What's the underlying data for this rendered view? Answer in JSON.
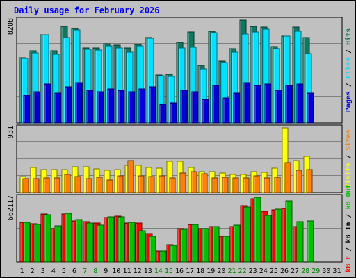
{
  "chart_data": {
    "type": "bar",
    "title": "Daily usage for February 2026",
    "categories": [
      "1",
      "2",
      "3",
      "4",
      "5",
      "6",
      "7",
      "8",
      "9",
      "10",
      "11",
      "12",
      "13",
      "14",
      "15",
      "16",
      "17",
      "18",
      "19",
      "20",
      "21",
      "22",
      "23",
      "24",
      "25",
      "26",
      "27",
      "28",
      "29",
      "30",
      "31"
    ],
    "weekend_days": [
      "7",
      "8",
      "14",
      "15",
      "21",
      "22",
      "28",
      "29"
    ],
    "panels": [
      {
        "max_label": "8208",
        "ylim": [
          0,
          8208
        ],
        "legend": [
          "Pages",
          "Files",
          "Hits"
        ],
        "series": [
          {
            "name": "Hits",
            "color": "#107860",
            "values": [
              5209,
              5759,
              7067,
              5780,
              7688,
              7539,
              5963,
              5964,
              6343,
              6196,
              6005,
              6250,
              6818,
              3838,
              3894,
              6437,
              7289,
              4577,
              7339,
              4946,
              5923,
              8208,
              7688,
              7637,
              6103,
              6917,
              7643,
              6840,
              0,
              0,
              0
            ]
          },
          {
            "name": "Files",
            "color": "#00e0ff",
            "values": [
              5140,
              5600,
              7020,
              5501,
              6809,
              7409,
              5899,
              5817,
              6181,
              5967,
              5667,
              6136,
              6740,
              3768,
              3733,
              5964,
              6022,
              4300,
              7220,
              4802,
              5679,
              7124,
              7280,
              7484,
              5931,
              6905,
              7344,
              5526,
              0,
              0,
              0
            ]
          },
          {
            "name": "Pages",
            "color": "#0000d8",
            "values": [
              2200,
              2500,
              3100,
              2400,
              2900,
              3200,
              2600,
              2500,
              2700,
              2600,
              2500,
              2700,
              2900,
              1500,
              1600,
              2600,
              2500,
              1900,
              3000,
              2000,
              2400,
              3200,
              3000,
              3100,
              2600,
              3000,
              3100,
              2400,
              0,
              0,
              0
            ]
          }
        ]
      },
      {
        "max_label": "931",
        "ylim": [
          0,
          931
        ],
        "legend": [
          "Visits",
          "Sites"
        ],
        "series": [
          {
            "name": "Visits",
            "color": "#ffff00",
            "values": [
              231,
              363,
              333,
              329,
              331,
              370,
              371,
              339,
              322,
              333,
              394,
              391,
              356,
              349,
              448,
              448,
              356,
              302,
              299,
              282,
              261,
              256,
              305,
              294,
              348,
              931,
              458,
              518,
              0,
              0,
              0
            ]
          },
          {
            "name": "Sites",
            "color": "#ff8000",
            "values": [
              205,
              201,
              207,
              211,
              259,
              233,
              201,
              219,
              182,
              236,
              458,
              240,
              231,
              241,
              213,
              281,
              301,
              273,
              215,
              222,
              207,
              208,
              238,
              213,
              218,
              426,
              318,
              331,
              0,
              0,
              0
            ]
          }
        ]
      },
      {
        "max_label": "662117",
        "ylim": [
          0,
          662117
        ],
        "legend": [
          "kB F",
          "kB In",
          "kB Out"
        ],
        "series": [
          {
            "name": "kB F",
            "color": "#ff0000",
            "values": [
              406000,
              389000,
              489000,
              340000,
              490000,
              418000,
              410000,
              398000,
              459000,
              467000,
              402000,
              402000,
              291000,
              114000,
              177000,
              339000,
              385000,
              340000,
              360000,
              262000,
              362000,
              574000,
              646000,
              522000,
              534000,
              547000,
              362000,
              0,
              0,
              0,
              0
            ]
          },
          {
            "name": "kB Out",
            "color": "#00c000",
            "values": [
              403000,
              382000,
              487000,
              369000,
              495000,
              435000,
              402000,
              380000,
              460000,
              462000,
              407000,
              322000,
              260000,
              113000,
              172000,
              338000,
              383000,
              340000,
              360000,
              261000,
              374000,
              565000,
              664000,
              480000,
              542000,
              626000,
              411000,
              419000,
              0,
              0,
              0
            ]
          }
        ]
      }
    ]
  }
}
